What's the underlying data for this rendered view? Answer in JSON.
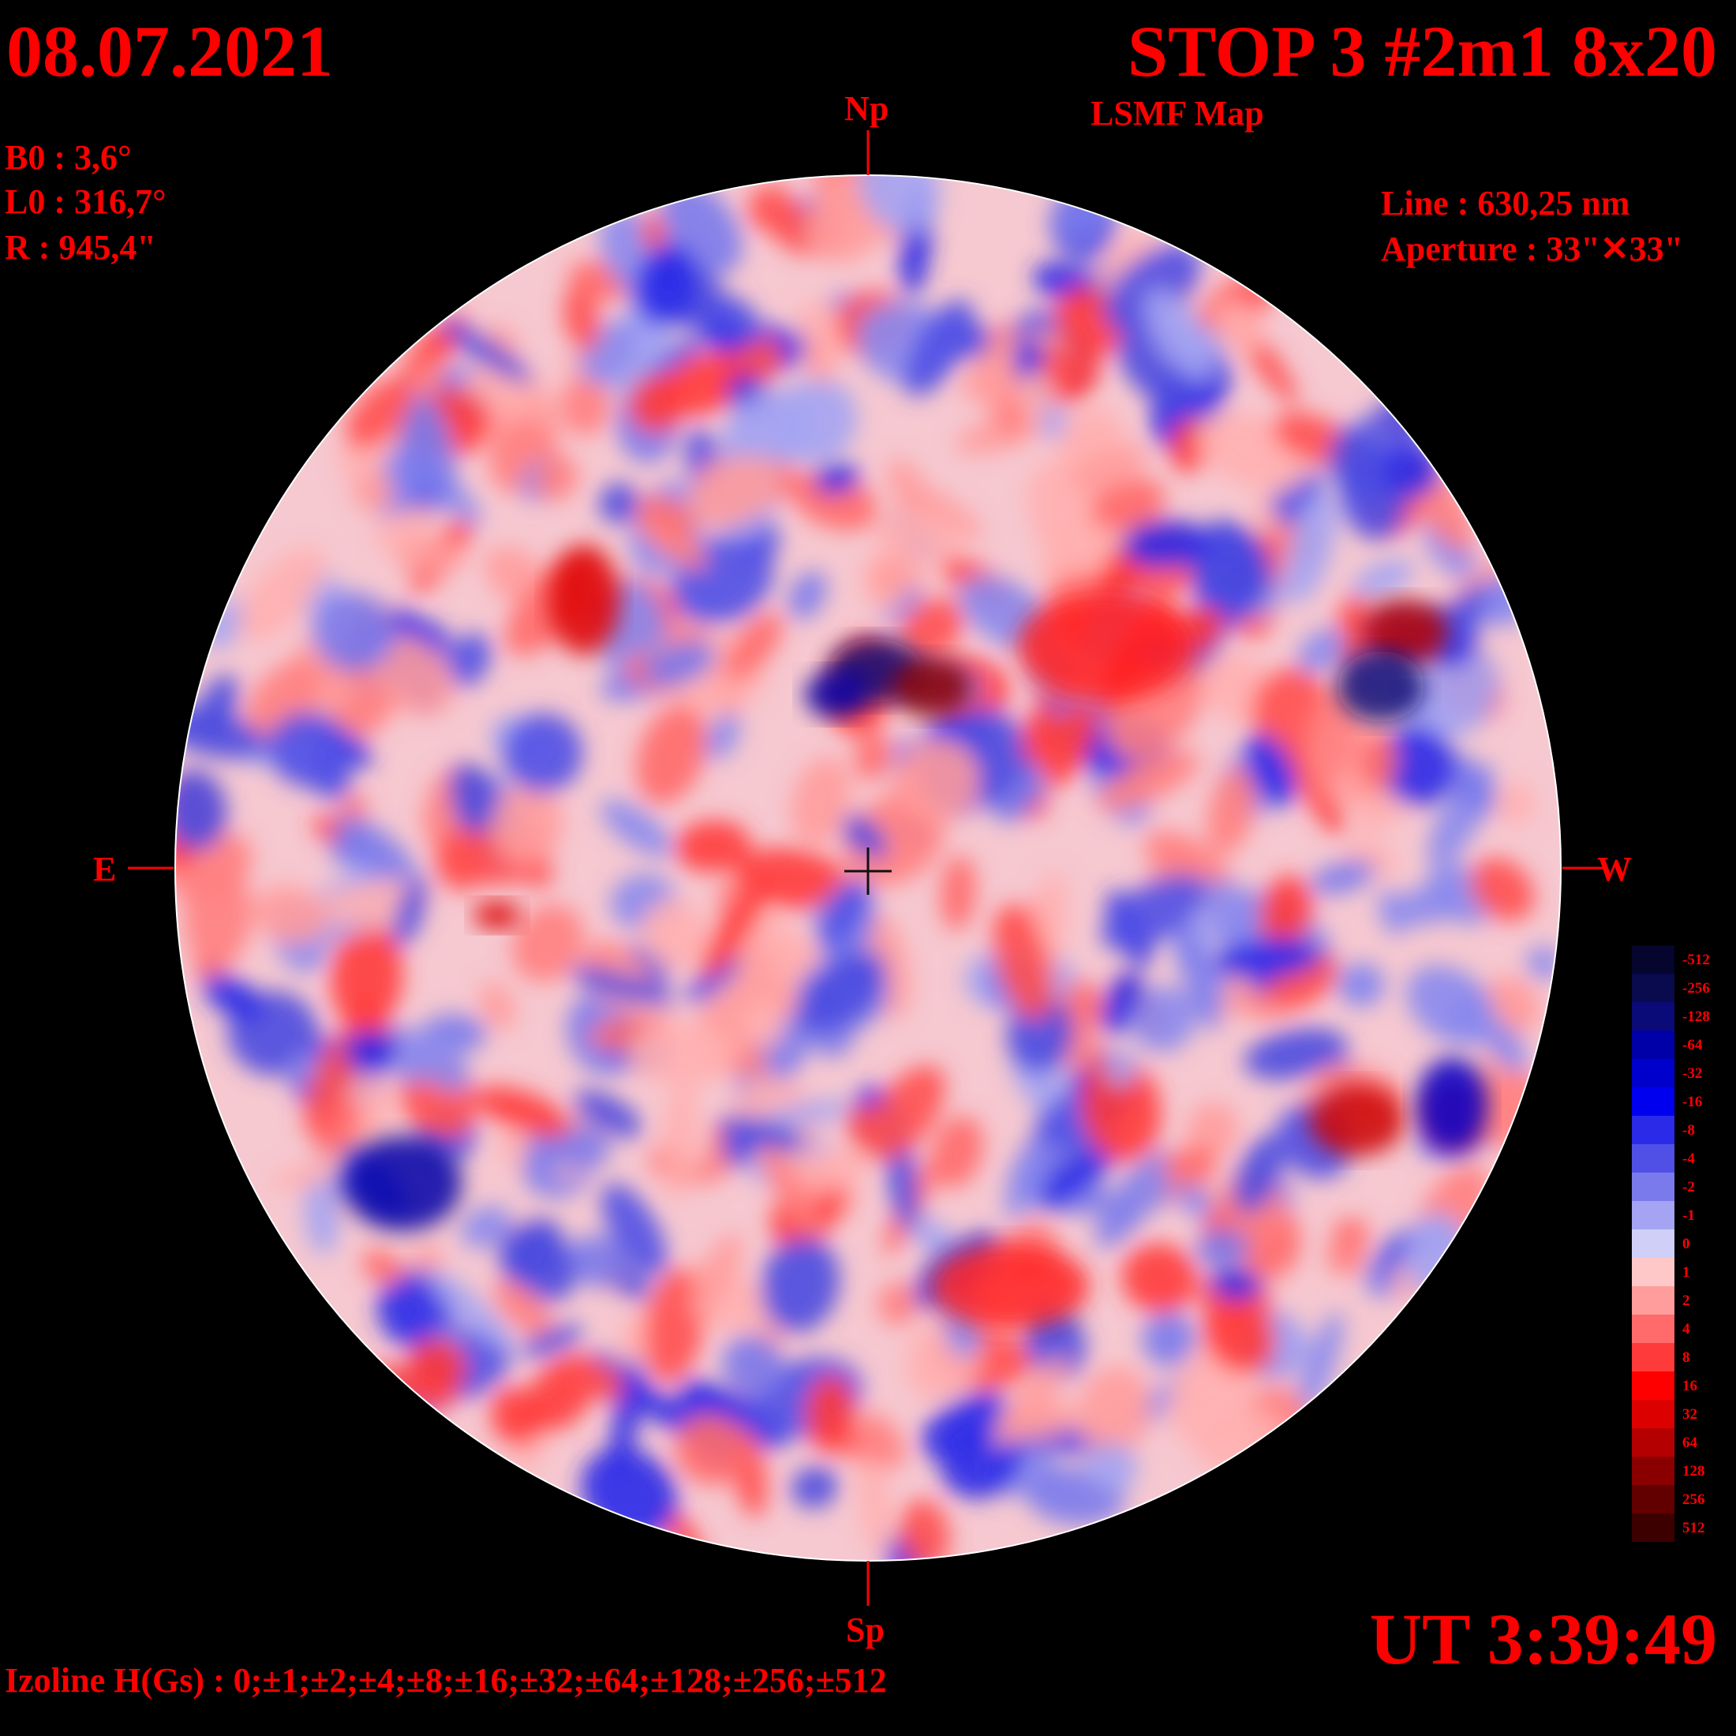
{
  "header": {
    "date": "08.07.2021",
    "station": "STOP 3 #2m1 8x20",
    "map_type": "LSMF  Map"
  },
  "ephemeris": {
    "b0": "B0 : 3,6°",
    "l0": "L0 : 316,7°",
    "r": "R  : 945,4\""
  },
  "instrument": {
    "line": "Line :  630,25 nm",
    "aperture": "Aperture : 33\"✕33\""
  },
  "axes": {
    "north": "Np",
    "south": "Sp",
    "east": "E",
    "west": "W"
  },
  "time": "UT 3:39:49",
  "izoline": "Izoline H(Gs) : 0;±1;±2;±4;±8;±16;±32;±64;±128;±256;±512",
  "colors": {
    "background": "#000000",
    "text": "#ff0000",
    "contour": "#ffffff"
  },
  "legend": {
    "levels": [
      {
        "label": "-512",
        "color": "#05052e"
      },
      {
        "label": "-256",
        "color": "#0a0a4e"
      },
      {
        "label": "-128",
        "color": "#0a0a78"
      },
      {
        "label": "-64",
        "color": "#0000a8"
      },
      {
        "label": "-32",
        "color": "#0000cc"
      },
      {
        "label": "-16",
        "color": "#0000ee"
      },
      {
        "label": "-8",
        "color": "#2a2ae8"
      },
      {
        "label": "-4",
        "color": "#5050e6"
      },
      {
        "label": "-2",
        "color": "#7a7aec"
      },
      {
        "label": "-1",
        "color": "#a4a4f2"
      },
      {
        "label": "0",
        "color": "#cfcff8"
      },
      {
        "label": "1",
        "color": "#ffc8c8"
      },
      {
        "label": "2",
        "color": "#ff9c9c"
      },
      {
        "label": "4",
        "color": "#ff6a6a"
      },
      {
        "label": "8",
        "color": "#ff3a3a"
      },
      {
        "label": "16",
        "color": "#ff0000"
      },
      {
        "label": "32",
        "color": "#dd0000"
      },
      {
        "label": "64",
        "color": "#b40000"
      },
      {
        "label": "128",
        "color": "#8a0000"
      },
      {
        "label": "256",
        "color": "#620000"
      },
      {
        "label": "512",
        "color": "#3c0000"
      }
    ]
  }
}
